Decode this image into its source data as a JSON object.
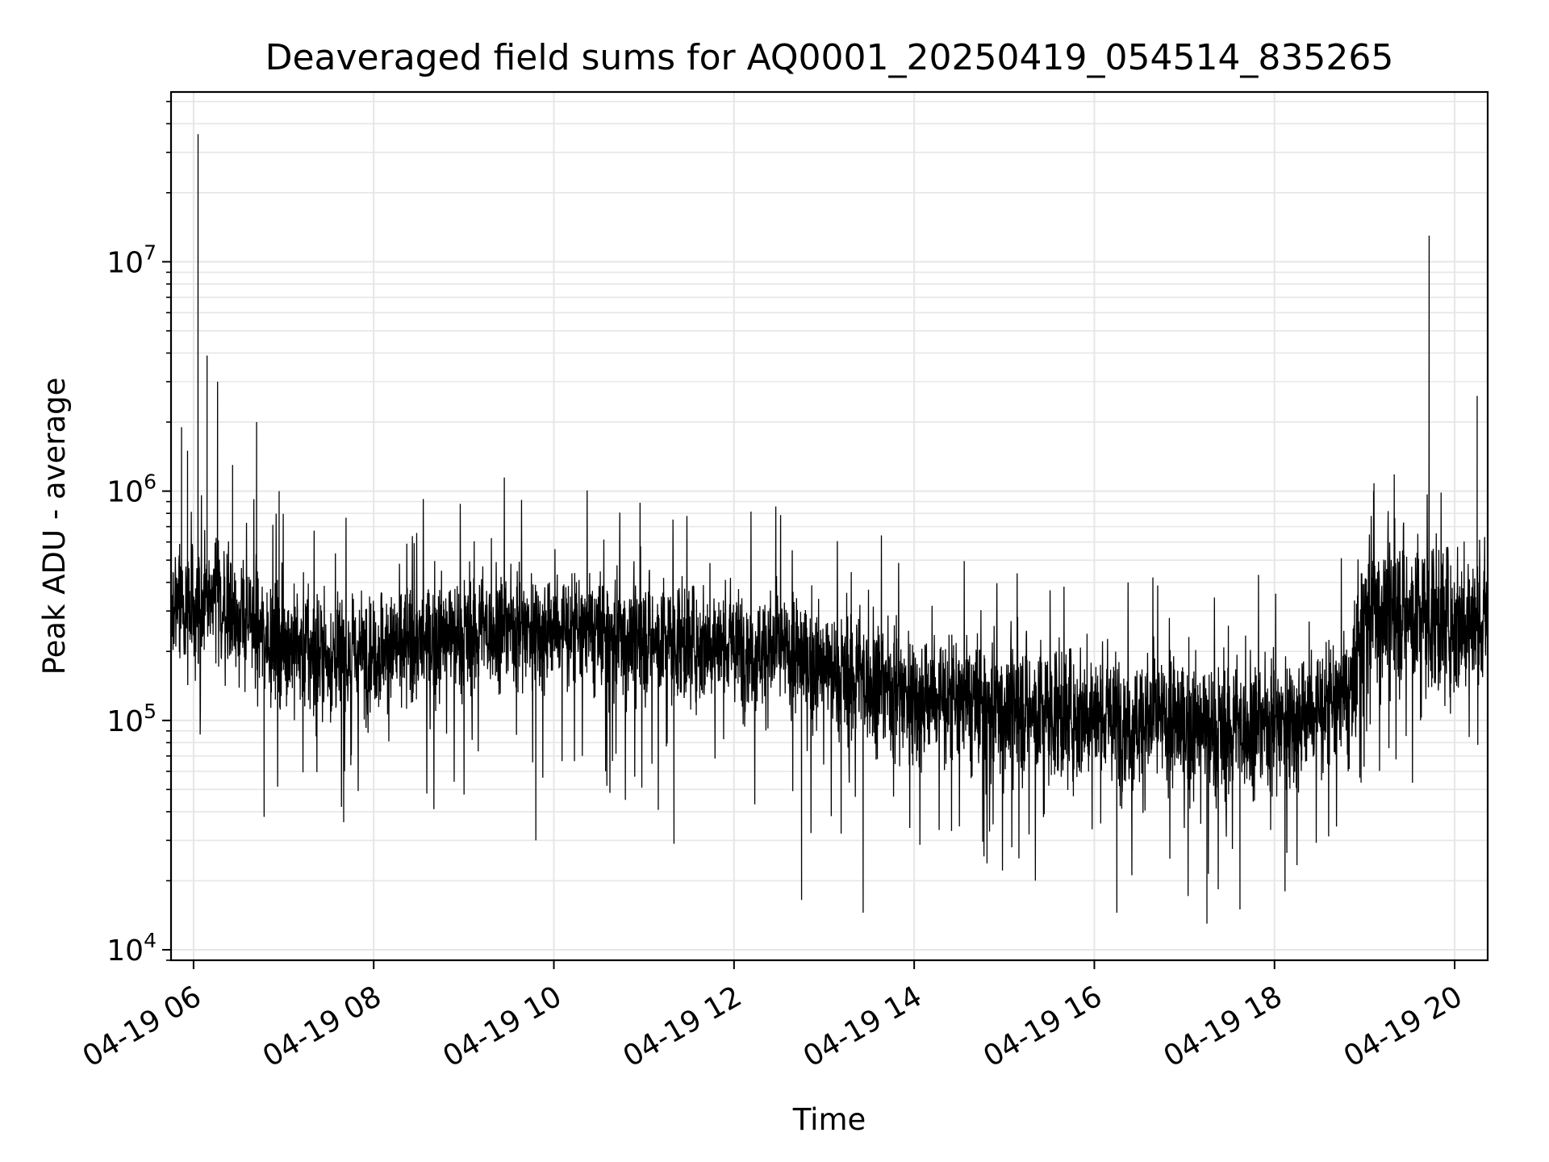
{
  "chart_data": {
    "type": "line",
    "title": "Deaveraged field sums for AQ0001_20250419_054514_835265",
    "xlabel": "Time",
    "ylabel": "Peak ADU - average",
    "x_scale": "time",
    "y_scale": "log",
    "xlim": [
      "2025-04-19T05:45",
      "2025-04-19T20:22"
    ],
    "ylim": [
      9000,
      55000000
    ],
    "x_ticks": [
      {
        "value": "2025-04-19T06:00",
        "label": "04-19 06"
      },
      {
        "value": "2025-04-19T08:00",
        "label": "04-19 08"
      },
      {
        "value": "2025-04-19T10:00",
        "label": "04-19 10"
      },
      {
        "value": "2025-04-19T12:00",
        "label": "04-19 12"
      },
      {
        "value": "2025-04-19T14:00",
        "label": "04-19 14"
      },
      {
        "value": "2025-04-19T16:00",
        "label": "04-19 16"
      },
      {
        "value": "2025-04-19T18:00",
        "label": "04-19 18"
      },
      {
        "value": "2025-04-19T20:00",
        "label": "04-19 20"
      }
    ],
    "y_ticks": [
      {
        "value": 10000,
        "base": "10",
        "exp": "4"
      },
      {
        "value": 100000,
        "base": "10",
        "exp": "5"
      },
      {
        "value": 1000000,
        "base": "10",
        "exp": "6"
      },
      {
        "value": 10000000,
        "base": "10",
        "exp": "7"
      }
    ],
    "grid": true,
    "minor_grid_y": true,
    "line_color": "#000000",
    "grid_color": "#e6e6e6",
    "series": [
      {
        "x": [
          "2025-04-19T05:45",
          "2025-04-19T06:00",
          "2025-04-19T06:15",
          "2025-04-19T06:30",
          "2025-04-19T06:45",
          "2025-04-19T07:00",
          "2025-04-19T07:30",
          "2025-04-19T08:00",
          "2025-04-19T08:30",
          "2025-04-19T09:00",
          "2025-04-19T09:30",
          "2025-04-19T10:00",
          "2025-04-19T10:30",
          "2025-04-19T11:00",
          "2025-04-19T11:30",
          "2025-04-19T12:00",
          "2025-04-19T12:30",
          "2025-04-19T13:00",
          "2025-04-19T13:30",
          "2025-04-19T14:00",
          "2025-04-19T14:30",
          "2025-04-19T15:00",
          "2025-04-19T15:30",
          "2025-04-19T16:00",
          "2025-04-19T16:30",
          "2025-04-19T17:00",
          "2025-04-19T17:30",
          "2025-04-19T18:00",
          "2025-04-19T18:30",
          "2025-04-19T18:52",
          "2025-04-19T19:00",
          "2025-04-19T19:30",
          "2025-04-19T20:00",
          "2025-04-19T20:22"
        ],
        "values": [
          300000,
          320000,
          330000,
          280000,
          240000,
          220000,
          190000,
          200000,
          220000,
          240000,
          260000,
          250000,
          240000,
          230000,
          220000,
          210000,
          200000,
          170000,
          150000,
          130000,
          120000,
          115000,
          110000,
          105000,
          100000,
          95000,
          92000,
          100000,
          110000,
          130000,
          320000,
          300000,
          270000,
          260000
        ],
        "spikes": [
          {
            "x": "2025-04-19T05:52",
            "value": 1900000
          },
          {
            "x": "2025-04-19T05:56",
            "value": 1500000
          },
          {
            "x": "2025-04-19T06:03",
            "value": 36000000
          },
          {
            "x": "2025-04-19T06:09",
            "value": 3900000
          },
          {
            "x": "2025-04-19T06:16",
            "value": 3000000
          },
          {
            "x": "2025-04-19T06:26",
            "value": 1300000
          },
          {
            "x": "2025-04-19T06:42",
            "value": 2000000
          },
          {
            "x": "2025-04-19T06:57",
            "value": 1000000
          },
          {
            "x": "2025-04-19T19:06",
            "value": 1000000
          },
          {
            "x": "2025-04-19T19:43",
            "value": 13000000
          },
          {
            "x": "2025-04-19T20:15",
            "value": 2600000
          },
          {
            "x": "2025-04-19T06:47",
            "value": 38000
          },
          {
            "x": "2025-04-19T07:40",
            "value": 36000
          },
          {
            "x": "2025-04-19T09:48",
            "value": 30000
          },
          {
            "x": "2025-04-19T11:20",
            "value": 29000
          },
          {
            "x": "2025-04-19T12:45",
            "value": 16500
          },
          {
            "x": "2025-04-19T13:26",
            "value": 14500
          },
          {
            "x": "2025-04-19T16:15",
            "value": 14500
          },
          {
            "x": "2025-04-19T17:15",
            "value": 13000
          },
          {
            "x": "2025-04-19T17:37",
            "value": 15000
          },
          {
            "x": "2025-04-19T18:07",
            "value": 18000
          }
        ]
      }
    ]
  }
}
